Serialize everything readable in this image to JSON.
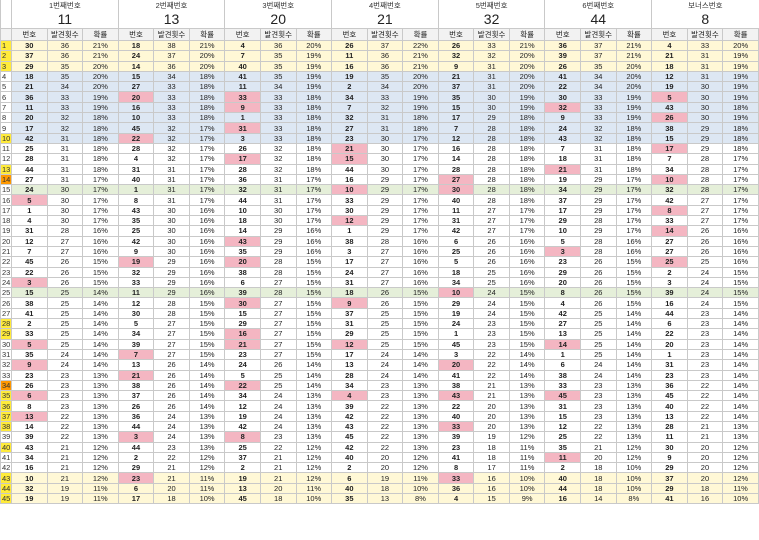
{
  "groups": [
    {
      "title": "1번째번호",
      "value": "11"
    },
    {
      "title": "2번째번호",
      "value": "13"
    },
    {
      "title": "3번째번호",
      "value": "20"
    },
    {
      "title": "4번째번호",
      "value": "21"
    },
    {
      "title": "5번째번호",
      "value": "32"
    },
    {
      "title": "6번째번호",
      "value": "44"
    },
    {
      "title": "보너스번호",
      "value": "8"
    }
  ],
  "subheaders": {
    "number": "번호",
    "count": "발견횟수",
    "rate": "확률"
  },
  "rows": [
    [
      "1",
      "30",
      "36",
      "21%",
      "18",
      "38",
      "21%",
      "4",
      "36",
      "20%",
      "26",
      "37",
      "22%",
      "26",
      "33",
      "21%",
      "36",
      "37",
      "21%",
      "4",
      "33",
      "20%"
    ],
    [
      "2",
      "37",
      "36",
      "21%",
      "24",
      "37",
      "20%",
      "7",
      "35",
      "19%",
      "11",
      "36",
      "21%",
      "32",
      "32",
      "20%",
      "39",
      "37",
      "21%",
      "21",
      "31",
      "19%"
    ],
    [
      "3",
      "29",
      "35",
      "20%",
      "14",
      "36",
      "20%",
      "40",
      "35",
      "19%",
      "16",
      "36",
      "21%",
      "9",
      "31",
      "20%",
      "26",
      "35",
      "20%",
      "18",
      "31",
      "19%"
    ],
    [
      "4",
      "18",
      "35",
      "20%",
      "15",
      "34",
      "18%",
      "41",
      "35",
      "19%",
      "19",
      "35",
      "20%",
      "21",
      "31",
      "20%",
      "41",
      "34",
      "20%",
      "12",
      "31",
      "19%"
    ],
    [
      "5",
      "21",
      "34",
      "20%",
      "27",
      "33",
      "18%",
      "11",
      "34",
      "19%",
      "2",
      "34",
      "20%",
      "37",
      "31",
      "20%",
      "22",
      "34",
      "20%",
      "19",
      "30",
      "19%"
    ],
    [
      "6",
      "36",
      "33",
      "19%",
      "20",
      "33",
      "18%",
      "33",
      "33",
      "18%",
      "34",
      "33",
      "19%",
      "35",
      "30",
      "19%",
      "30",
      "33",
      "19%",
      "5",
      "30",
      "19%"
    ],
    [
      "7",
      "11",
      "33",
      "19%",
      "16",
      "33",
      "18%",
      "9",
      "33",
      "18%",
      "7",
      "32",
      "19%",
      "15",
      "30",
      "19%",
      "32",
      "33",
      "19%",
      "43",
      "30",
      "18%"
    ],
    [
      "8",
      "20",
      "32",
      "18%",
      "10",
      "33",
      "18%",
      "1",
      "33",
      "18%",
      "32",
      "31",
      "18%",
      "17",
      "29",
      "18%",
      "9",
      "33",
      "19%",
      "26",
      "30",
      "19%"
    ],
    [
      "9",
      "17",
      "32",
      "18%",
      "45",
      "32",
      "17%",
      "31",
      "33",
      "18%",
      "27",
      "31",
      "18%",
      "7",
      "28",
      "18%",
      "24",
      "32",
      "18%",
      "38",
      "29",
      "18%"
    ],
    [
      "10",
      "42",
      "31",
      "18%",
      "22",
      "32",
      "17%",
      "3",
      "33",
      "18%",
      "23",
      "30",
      "17%",
      "12",
      "28",
      "18%",
      "43",
      "32",
      "18%",
      "15",
      "29",
      "18%"
    ],
    [
      "11",
      "25",
      "31",
      "18%",
      "28",
      "32",
      "17%",
      "26",
      "32",
      "18%",
      "21",
      "30",
      "17%",
      "16",
      "28",
      "18%",
      "7",
      "31",
      "18%",
      "17",
      "29",
      "18%"
    ],
    [
      "12",
      "28",
      "31",
      "18%",
      "4",
      "32",
      "17%",
      "17",
      "32",
      "18%",
      "15",
      "30",
      "17%",
      "14",
      "28",
      "18%",
      "18",
      "31",
      "18%",
      "7",
      "28",
      "17%"
    ],
    [
      "13",
      "44",
      "31",
      "18%",
      "31",
      "31",
      "17%",
      "28",
      "32",
      "18%",
      "44",
      "30",
      "17%",
      "28",
      "28",
      "18%",
      "21",
      "31",
      "18%",
      "34",
      "28",
      "17%"
    ],
    [
      "14",
      "27",
      "31",
      "17%",
      "40",
      "31",
      "17%",
      "36",
      "31",
      "17%",
      "16",
      "29",
      "17%",
      "27",
      "28",
      "18%",
      "19",
      "29",
      "17%",
      "10",
      "28",
      "17%"
    ],
    [
      "15",
      "24",
      "30",
      "17%",
      "1",
      "31",
      "17%",
      "32",
      "31",
      "17%",
      "10",
      "29",
      "17%",
      "30",
      "28",
      "18%",
      "34",
      "29",
      "17%",
      "32",
      "28",
      "17%"
    ],
    [
      "16",
      "5",
      "30",
      "17%",
      "8",
      "31",
      "17%",
      "44",
      "31",
      "17%",
      "33",
      "29",
      "17%",
      "40",
      "28",
      "18%",
      "37",
      "29",
      "17%",
      "42",
      "27",
      "17%"
    ],
    [
      "17",
      "1",
      "30",
      "17%",
      "43",
      "30",
      "16%",
      "10",
      "30",
      "17%",
      "30",
      "29",
      "17%",
      "11",
      "27",
      "17%",
      "17",
      "29",
      "17%",
      "8",
      "27",
      "17%"
    ],
    [
      "18",
      "4",
      "30",
      "17%",
      "35",
      "30",
      "16%",
      "18",
      "30",
      "17%",
      "12",
      "29",
      "17%",
      "31",
      "27",
      "17%",
      "29",
      "28",
      "17%",
      "33",
      "27",
      "17%"
    ],
    [
      "19",
      "31",
      "28",
      "16%",
      "25",
      "30",
      "16%",
      "14",
      "29",
      "16%",
      "1",
      "29",
      "17%",
      "42",
      "27",
      "17%",
      "10",
      "29",
      "17%",
      "14",
      "26",
      "16%"
    ],
    [
      "20",
      "12",
      "27",
      "16%",
      "42",
      "30",
      "16%",
      "43",
      "29",
      "16%",
      "38",
      "28",
      "16%",
      "6",
      "26",
      "16%",
      "5",
      "28",
      "16%",
      "27",
      "26",
      "16%"
    ],
    [
      "21",
      "7",
      "27",
      "16%",
      "9",
      "30",
      "16%",
      "35",
      "29",
      "16%",
      "3",
      "27",
      "16%",
      "25",
      "26",
      "16%",
      "3",
      "28",
      "16%",
      "27",
      "26",
      "16%"
    ],
    [
      "22",
      "45",
      "26",
      "15%",
      "19",
      "29",
      "16%",
      "20",
      "28",
      "15%",
      "17",
      "27",
      "16%",
      "5",
      "26",
      "16%",
      "23",
      "26",
      "15%",
      "25",
      "25",
      "16%"
    ],
    [
      "23",
      "22",
      "26",
      "15%",
      "32",
      "29",
      "16%",
      "38",
      "28",
      "15%",
      "24",
      "27",
      "16%",
      "18",
      "25",
      "16%",
      "29",
      "26",
      "15%",
      "2",
      "24",
      "15%"
    ],
    [
      "24",
      "3",
      "26",
      "15%",
      "33",
      "29",
      "16%",
      "6",
      "27",
      "15%",
      "31",
      "27",
      "16%",
      "34",
      "25",
      "16%",
      "20",
      "26",
      "15%",
      "3",
      "24",
      "15%"
    ],
    [
      "25",
      "15",
      "25",
      "14%",
      "11",
      "29",
      "16%",
      "39",
      "28",
      "15%",
      "18",
      "26",
      "15%",
      "10",
      "24",
      "15%",
      "8",
      "26",
      "15%",
      "39",
      "24",
      "15%"
    ],
    [
      "26",
      "38",
      "25",
      "14%",
      "12",
      "28",
      "15%",
      "30",
      "27",
      "15%",
      "9",
      "26",
      "15%",
      "29",
      "24",
      "15%",
      "4",
      "26",
      "15%",
      "16",
      "24",
      "15%"
    ],
    [
      "27",
      "41",
      "25",
      "14%",
      "30",
      "28",
      "15%",
      "15",
      "27",
      "15%",
      "37",
      "25",
      "15%",
      "19",
      "24",
      "15%",
      "42",
      "25",
      "14%",
      "44",
      "23",
      "14%"
    ],
    [
      "28",
      "2",
      "25",
      "14%",
      "5",
      "27",
      "15%",
      "29",
      "27",
      "15%",
      "31",
      "25",
      "15%",
      "24",
      "23",
      "15%",
      "27",
      "25",
      "14%",
      "6",
      "23",
      "14%"
    ],
    [
      "29",
      "33",
      "25",
      "14%",
      "34",
      "27",
      "15%",
      "16",
      "27",
      "15%",
      "29",
      "25",
      "15%",
      "1",
      "23",
      "15%",
      "13",
      "25",
      "14%",
      "22",
      "23",
      "14%"
    ],
    [
      "30",
      "5",
      "25",
      "14%",
      "39",
      "27",
      "15%",
      "21",
      "27",
      "15%",
      "12",
      "25",
      "15%",
      "45",
      "23",
      "15%",
      "14",
      "25",
      "14%",
      "20",
      "23",
      "14%"
    ],
    [
      "31",
      "35",
      "24",
      "14%",
      "7",
      "27",
      "15%",
      "23",
      "27",
      "15%",
      "17",
      "24",
      "14%",
      "3",
      "22",
      "14%",
      "1",
      "25",
      "14%",
      "1",
      "23",
      "14%"
    ],
    [
      "32",
      "9",
      "24",
      "14%",
      "13",
      "26",
      "14%",
      "24",
      "26",
      "14%",
      "13",
      "24",
      "14%",
      "20",
      "22",
      "14%",
      "6",
      "24",
      "14%",
      "31",
      "23",
      "14%"
    ],
    [
      "33",
      "23",
      "23",
      "13%",
      "21",
      "26",
      "14%",
      "5",
      "25",
      "14%",
      "28",
      "24",
      "14%",
      "41",
      "22",
      "14%",
      "38",
      "24",
      "14%",
      "23",
      "23",
      "14%"
    ],
    [
      "34",
      "26",
      "23",
      "13%",
      "38",
      "26",
      "14%",
      "22",
      "25",
      "14%",
      "34",
      "23",
      "13%",
      "38",
      "21",
      "13%",
      "33",
      "23",
      "13%",
      "36",
      "22",
      "14%"
    ],
    [
      "35",
      "6",
      "23",
      "13%",
      "37",
      "26",
      "14%",
      "34",
      "24",
      "13%",
      "4",
      "23",
      "13%",
      "43",
      "21",
      "13%",
      "45",
      "23",
      "13%",
      "45",
      "22",
      "14%"
    ],
    [
      "36",
      "8",
      "23",
      "13%",
      "26",
      "26",
      "14%",
      "12",
      "24",
      "13%",
      "39",
      "22",
      "13%",
      "22",
      "20",
      "13%",
      "31",
      "23",
      "13%",
      "40",
      "22",
      "14%"
    ],
    [
      "37",
      "13",
      "22",
      "13%",
      "36",
      "24",
      "13%",
      "19",
      "24",
      "13%",
      "42",
      "22",
      "13%",
      "40",
      "20",
      "13%",
      "15",
      "23",
      "13%",
      "13",
      "22",
      "14%"
    ],
    [
      "38",
      "14",
      "22",
      "13%",
      "44",
      "24",
      "13%",
      "42",
      "24",
      "13%",
      "43",
      "22",
      "13%",
      "33",
      "20",
      "13%",
      "12",
      "22",
      "13%",
      "28",
      "21",
      "13%"
    ],
    [
      "39",
      "39",
      "22",
      "13%",
      "3",
      "24",
      "13%",
      "8",
      "23",
      "13%",
      "45",
      "22",
      "13%",
      "39",
      "19",
      "12%",
      "25",
      "22",
      "13%",
      "11",
      "21",
      "13%"
    ],
    [
      "40",
      "43",
      "21",
      "12%",
      "44",
      "23",
      "13%",
      "25",
      "22",
      "12%",
      "42",
      "22",
      "13%",
      "23",
      "18",
      "11%",
      "35",
      "21",
      "12%",
      "30",
      "20",
      "12%"
    ],
    [
      "41",
      "34",
      "21",
      "12%",
      "2",
      "22",
      "12%",
      "37",
      "21",
      "12%",
      "40",
      "20",
      "12%",
      "41",
      "18",
      "11%",
      "11",
      "20",
      "12%",
      "9",
      "20",
      "12%"
    ],
    [
      "42",
      "16",
      "21",
      "12%",
      "29",
      "21",
      "12%",
      "2",
      "21",
      "12%",
      "2",
      "20",
      "12%",
      "8",
      "17",
      "11%",
      "2",
      "18",
      "10%",
      "29",
      "20",
      "12%"
    ],
    [
      "43",
      "10",
      "21",
      "12%",
      "23",
      "21",
      "11%",
      "19",
      "21",
      "12%",
      "6",
      "19",
      "11%",
      "33",
      "16",
      "10%",
      "40",
      "18",
      "10%",
      "37",
      "20",
      "12%"
    ],
    [
      "44",
      "32",
      "19",
      "11%",
      "6",
      "20",
      "11%",
      "13",
      "20",
      "11%",
      "40",
      "18",
      "10%",
      "36",
      "16",
      "10%",
      "44",
      "18",
      "10%",
      "29",
      "18",
      "11%"
    ],
    [
      "45",
      "19",
      "19",
      "11%",
      "17",
      "18",
      "10%",
      "45",
      "18",
      "10%",
      "35",
      "13",
      "8%",
      "4",
      "15",
      "9%",
      "16",
      "14",
      "8%",
      "41",
      "16",
      "10%"
    ]
  ],
  "highlighted_rows": {
    "yellow": [
      "1",
      "2",
      "3",
      "43",
      "44",
      "45"
    ],
    "blue": [
      "4",
      "5",
      "6",
      "7",
      "8",
      "9",
      "10"
    ],
    "green": [
      "15",
      "25"
    ]
  },
  "row_label_colors": {
    "yellow_label": [
      "1",
      "2",
      "3",
      "10",
      "13",
      "28",
      "29",
      "35",
      "36",
      "37",
      "38",
      "40",
      "43",
      "44",
      "45"
    ],
    "orange_label": [
      "14",
      "34"
    ]
  },
  "highlight_colors": {
    "yellow": "#fff8d6",
    "blue": "#dde7f3",
    "green": "#e5efd9",
    "pink": "#f4b6c2",
    "label_yellow": "#ffeb3b",
    "label_orange": "#ff9800"
  },
  "pink_marks": [
    "4-4",
    "4-10",
    "4-12",
    "4-21",
    "4-15",
    "4-9",
    "1-3",
    "1-5",
    "1-6",
    "1-9",
    "1-13",
    "2-3",
    "2-7",
    "2-21",
    "2-19",
    "2-20",
    "2-22",
    "2-23",
    "3-8",
    "3-9",
    "3-16",
    "3-17",
    "3-20",
    "3-21",
    "3-22",
    "3-30",
    "3-31",
    "3-33",
    "3-43",
    "5-10",
    "5-20",
    "5-27",
    "5-30",
    "5-33",
    "5-43",
    "6-3",
    "6-11",
    "6-14",
    "6-21",
    "6-32",
    "6-45",
    "7-5",
    "7-8",
    "7-10",
    "7-17",
    "7-25",
    "7-24",
    "7-26",
    "7-14"
  ]
}
